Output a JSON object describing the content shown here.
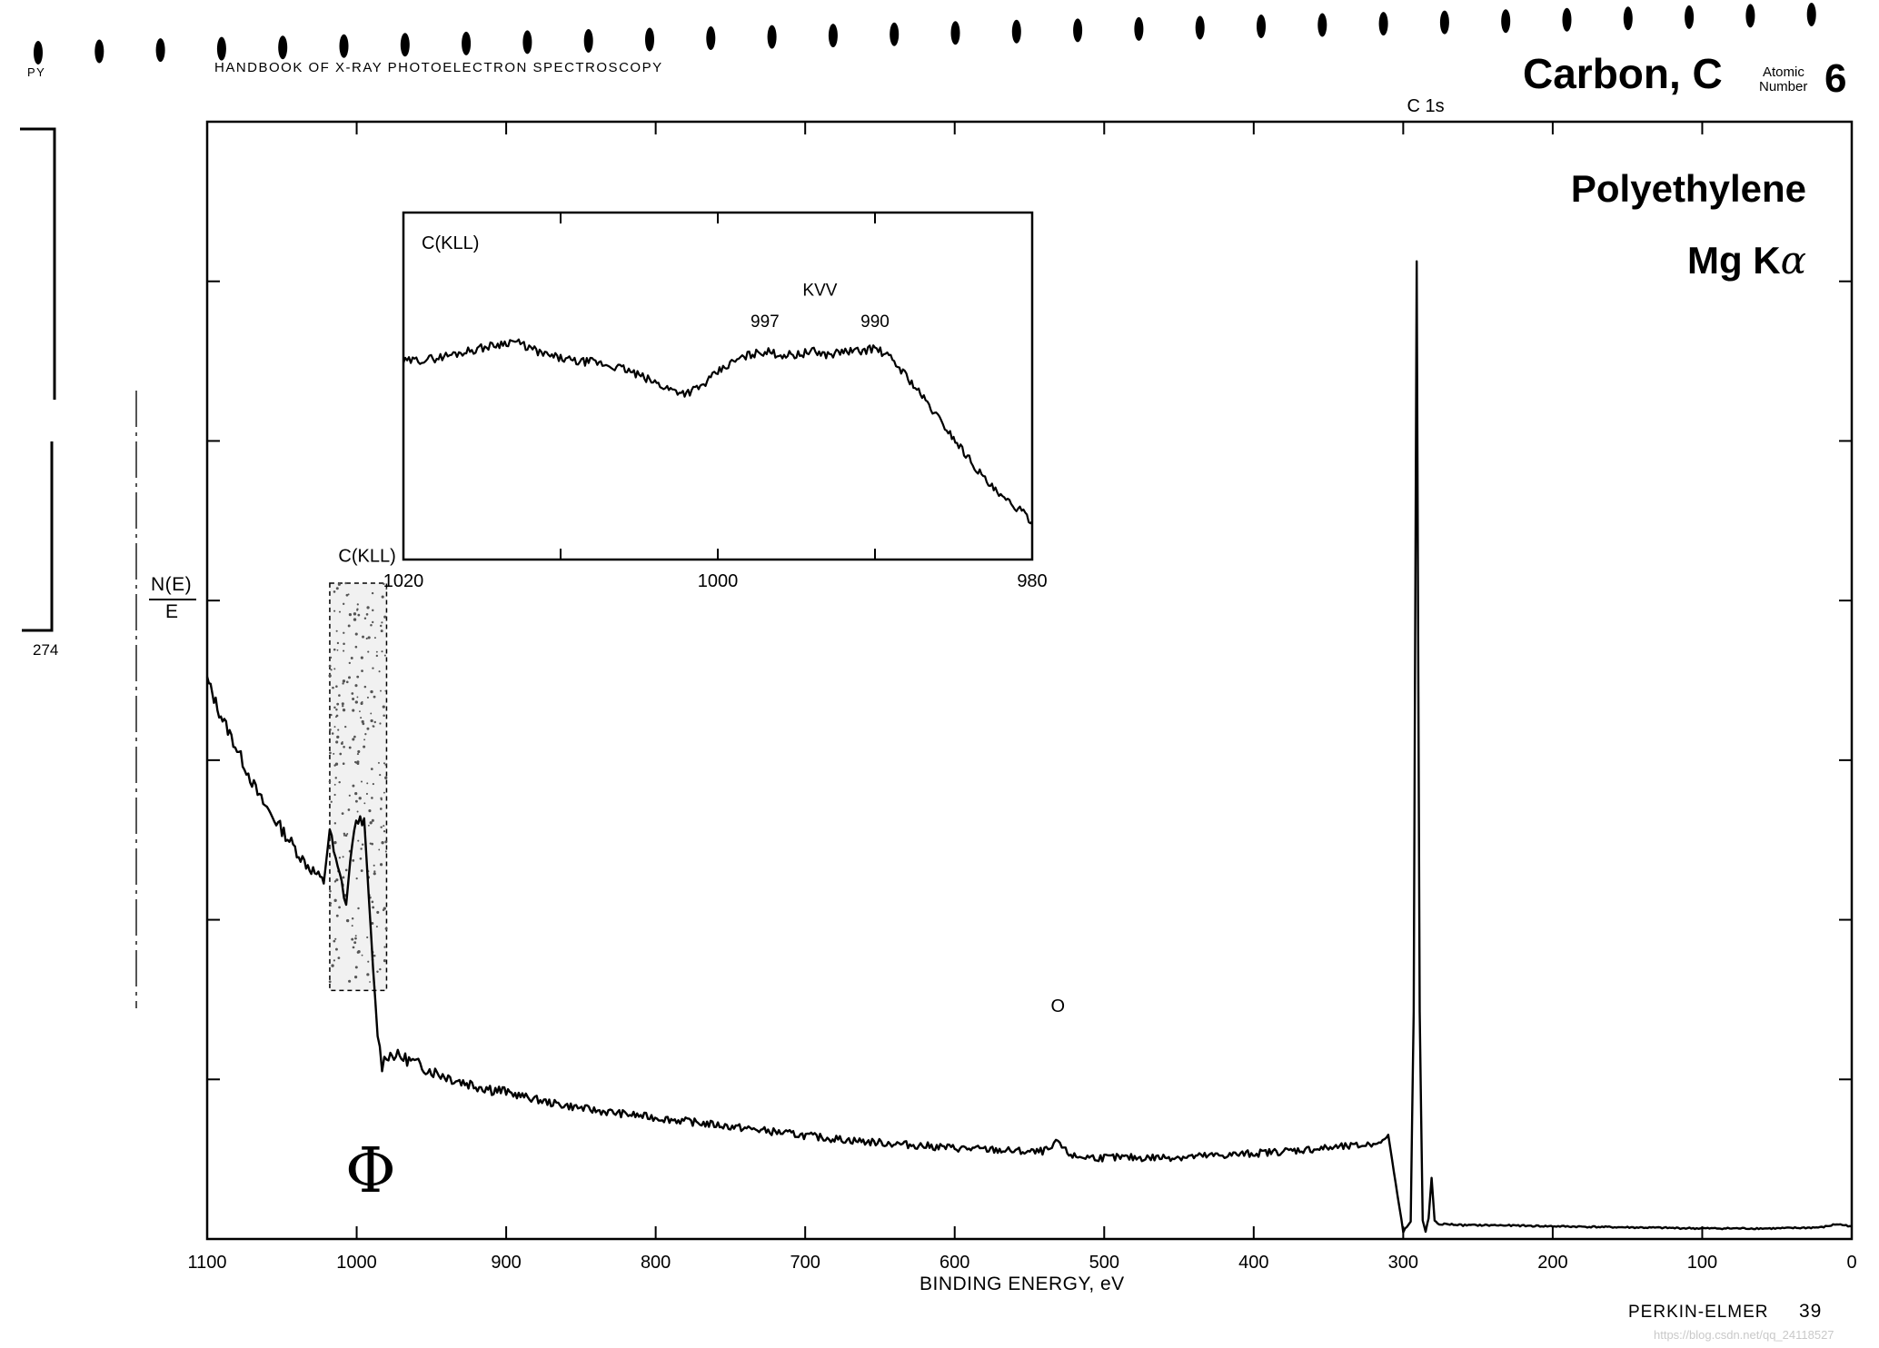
{
  "header": {
    "left_fragment": "PY",
    "book_title": "HANDBOOK OF X-RAY PHOTOELECTRON SPECTROSCOPY",
    "element_title": "Carbon, C",
    "atomic_word_1": "Atomic",
    "atomic_word_2": "Number",
    "atomic_number": "6"
  },
  "side": {
    "page_ref": "274"
  },
  "labels": {
    "sample": "Polyethylene",
    "source_prefix": "Mg K",
    "source_symbol": "α",
    "ylabel_top": "N(E)",
    "ylabel_bottom": "E",
    "logo_symbol": "Φ"
  },
  "footer": {
    "brand": "PERKIN-ELMER",
    "page_number": "39",
    "watermark": "https://blog.csdn.net/qq_24118527"
  },
  "chart_data": [
    {
      "type": "line",
      "name_role": "survey",
      "title": "",
      "xlabel": "BINDING ENERGY, eV",
      "ylabel": "N(E)/E",
      "xlim": [
        1100,
        0
      ],
      "ylim": [
        0,
        100
      ],
      "x_ticks": [
        1100,
        1000,
        900,
        800,
        700,
        600,
        500,
        400,
        300,
        200,
        100,
        0
      ],
      "grid": false,
      "annotations": [
        {
          "text": "C(KLL)",
          "x": 993,
          "y": 62
        },
        {
          "text": "O",
          "x": 531,
          "y": 20
        },
        {
          "text": "C 1s",
          "x": 285,
          "y": 104
        }
      ],
      "highlight_band": {
        "x": [
          1018,
          980
        ],
        "y": [
          22,
          60
        ]
      },
      "series": [
        {
          "x": [
            1100,
            1092,
            1085,
            1075,
            1065,
            1055,
            1045,
            1035,
            1028,
            1022,
            1018,
            1014,
            1010,
            1007,
            1003,
            999,
            995,
            992,
            989,
            986,
            983,
            980,
            975,
            965,
            950,
            930,
            900,
            870,
            840,
            810,
            780,
            750,
            720,
            690,
            660,
            630,
            600,
            570,
            545,
            535,
            531,
            527,
            520,
            500,
            470,
            440,
            410,
            380,
            350,
            330,
            315,
            310,
            305,
            300,
            295,
            293,
            291,
            289,
            287,
            285,
            283,
            281,
            279,
            277,
            275,
            270,
            260,
            240,
            200,
            150,
            100,
            50,
            20,
            10,
            0
          ],
          "y": [
            51,
            48,
            46,
            43,
            40,
            38,
            36,
            34,
            33,
            32,
            37,
            34,
            32,
            30,
            36,
            38,
            38,
            31,
            24,
            18,
            15,
            16,
            16,
            15.5,
            14.5,
            13.5,
            12.5,
            11.5,
            10.8,
            10.3,
            9.8,
            9.3,
            8.8,
            8.3,
            7.9,
            7.6,
            7.3,
            7.1,
            6.9,
            7.2,
            8,
            7.1,
            6.5,
            6.4,
            6.4,
            6.5,
            6.7,
            7,
            7.3,
            7.5,
            7.8,
            8.5,
            4,
            -0.5,
            0.5,
            20,
            90,
            20,
            0.5,
            -0.5,
            0.8,
            4.5,
            0.5,
            0.2,
            0.2,
            0.2,
            0.1,
            0.1,
            0,
            -0.1,
            -0.2,
            -0.2,
            -0.1,
            0.2,
            0
          ]
        }
      ]
    },
    {
      "type": "line",
      "name_role": "inset",
      "title": "C(KLL)",
      "xlabel": "",
      "ylabel": "",
      "xlim": [
        1020,
        980
      ],
      "ylim": [
        0,
        100
      ],
      "x_ticks": [
        1020,
        1000,
        980
      ],
      "grid": false,
      "annotations": [
        {
          "text": "KVV",
          "x": 993.5,
          "y": 76
        },
        {
          "text": "997",
          "x": 997,
          "y": 67
        },
        {
          "text": "990",
          "x": 990,
          "y": 67
        }
      ],
      "series": [
        {
          "x": [
            1020,
            1018,
            1016,
            1014,
            1013,
            1012,
            1011,
            1010,
            1009,
            1008,
            1007,
            1006,
            1005,
            1004,
            1003,
            1002,
            1001,
            1000,
            999,
            998,
            997,
            996,
            995,
            994,
            993,
            992,
            991,
            990,
            989,
            988,
            987,
            986,
            985,
            984,
            983,
            982,
            981,
            980
          ],
          "y": [
            57,
            58,
            60,
            62,
            63,
            61,
            59,
            58,
            57,
            57,
            56,
            55,
            53,
            51,
            49,
            48,
            50,
            54,
            57,
            59,
            60,
            59,
            59,
            60,
            59,
            60,
            60,
            61,
            58,
            53,
            47,
            41,
            35,
            29,
            23,
            18,
            15,
            11
          ]
        }
      ]
    }
  ]
}
